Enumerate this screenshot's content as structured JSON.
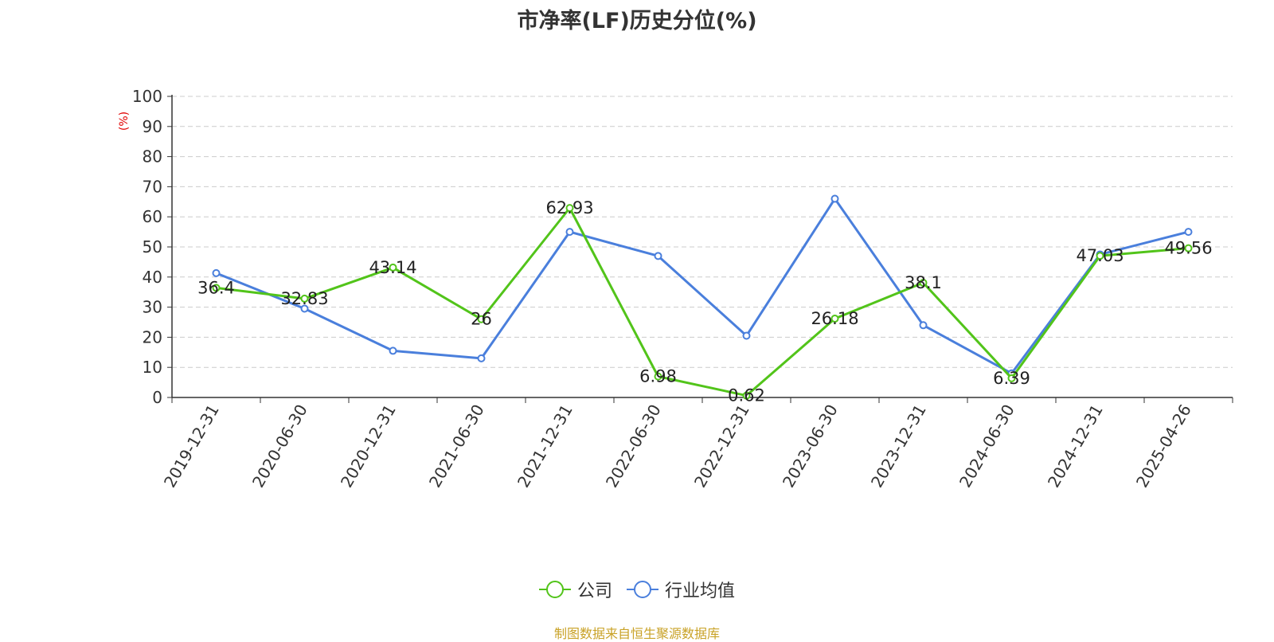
{
  "chart_data": {
    "type": "line",
    "title": "市净率(LF)历史分位(%)",
    "ylabel": "(%)",
    "xlabel": "",
    "ylim": [
      0,
      100
    ],
    "yticks": [
      0,
      10,
      20,
      30,
      40,
      50,
      60,
      70,
      80,
      90,
      100
    ],
    "grid": true,
    "legend_position": "bottom",
    "categories": [
      "2019-12-31",
      "2020-06-30",
      "2020-12-31",
      "2021-06-30",
      "2021-12-31",
      "2022-06-30",
      "2022-12-31",
      "2023-06-30",
      "2023-12-31",
      "2024-06-30",
      "2024-12-31",
      "2025-04-26"
    ],
    "series": [
      {
        "name": "公司",
        "color": "#52c41a",
        "values": [
          36.4,
          32.83,
          43.14,
          26,
          62.93,
          6.98,
          0.62,
          26.18,
          38.1,
          6.39,
          47.03,
          49.56
        ],
        "labels": [
          "36.4",
          "32.83",
          "43.14",
          "26",
          "62.93",
          "6.98",
          "0.62",
          "26.18",
          "38.1",
          "6.39",
          "47.03",
          "49.56"
        ]
      },
      {
        "name": "行业均值",
        "color": "#4a7fdc",
        "values": [
          41.3,
          29.5,
          15.5,
          13,
          55,
          47,
          20.5,
          66,
          24,
          8,
          47.5,
          55
        ]
      }
    ]
  },
  "source_note": "制图数据来自恒生聚源数据库"
}
